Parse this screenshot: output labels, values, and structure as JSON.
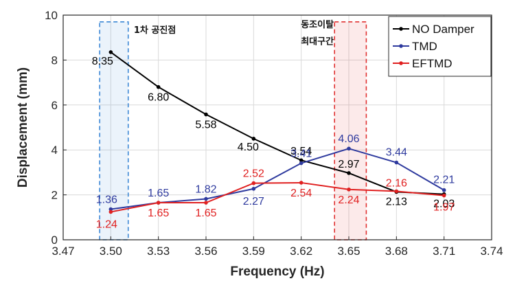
{
  "chart_data": {
    "type": "line",
    "title": "",
    "xlabel": "Frequency (Hz)",
    "ylabel": "Displacement (mm)",
    "xlim": [
      3.47,
      3.74
    ],
    "ylim": [
      0,
      10
    ],
    "xticks": [
      "3.47",
      "3.50",
      "3.53",
      "3.56",
      "3.59",
      "3.62",
      "3.65",
      "3.68",
      "3.71",
      "3.74"
    ],
    "yticks": [
      "0",
      "2",
      "4",
      "6",
      "8",
      "10"
    ],
    "grid": true,
    "legend_position": "top-right",
    "series": [
      {
        "name": "NO Damper",
        "color": "#000000",
        "x": [
          3.5,
          3.53,
          3.56,
          3.59,
          3.62,
          3.65,
          3.68,
          3.71
        ],
        "values": [
          8.35,
          6.8,
          5.58,
          4.5,
          3.54,
          2.97,
          2.13,
          2.03
        ],
        "labels": [
          "8.35",
          "6.80",
          "5.58",
          "4.50",
          "3.54",
          "2.97",
          "2.13",
          "2.03"
        ]
      },
      {
        "name": "TMD",
        "color": "#2e3a9e",
        "x": [
          3.5,
          3.53,
          3.56,
          3.59,
          3.62,
          3.65,
          3.68,
          3.71
        ],
        "values": [
          1.36,
          1.65,
          1.82,
          2.27,
          3.41,
          4.06,
          3.44,
          2.21
        ],
        "labels": [
          "1.36",
          "1.65",
          "1.82",
          "2.27",
          "3.41",
          "4.06",
          "3.44",
          "2.21"
        ]
      },
      {
        "name": "EFTMD",
        "color": "#e02020",
        "x": [
          3.5,
          3.53,
          3.56,
          3.59,
          3.62,
          3.65,
          3.68,
          3.71
        ],
        "values": [
          1.24,
          1.65,
          1.65,
          2.52,
          2.54,
          2.24,
          2.16,
          1.97
        ],
        "labels": [
          "1.24",
          "1.65",
          "1.65",
          "2.52",
          "2.54",
          "2.24",
          "2.16",
          "1.97"
        ]
      }
    ],
    "highlight_regions": [
      {
        "label": "1차 공진점",
        "label_lines": [
          "1차 공진점"
        ],
        "x_range": [
          3.493,
          3.511
        ],
        "y_range": [
          0,
          9.7
        ],
        "color": "#3a86d4"
      },
      {
        "label": "동조이탈 최대구간",
        "label_lines": [
          "동조이탈",
          "최대구간"
        ],
        "x_range": [
          3.641,
          3.661
        ],
        "y_range": [
          0,
          9.7
        ],
        "color": "#e03030"
      }
    ]
  }
}
